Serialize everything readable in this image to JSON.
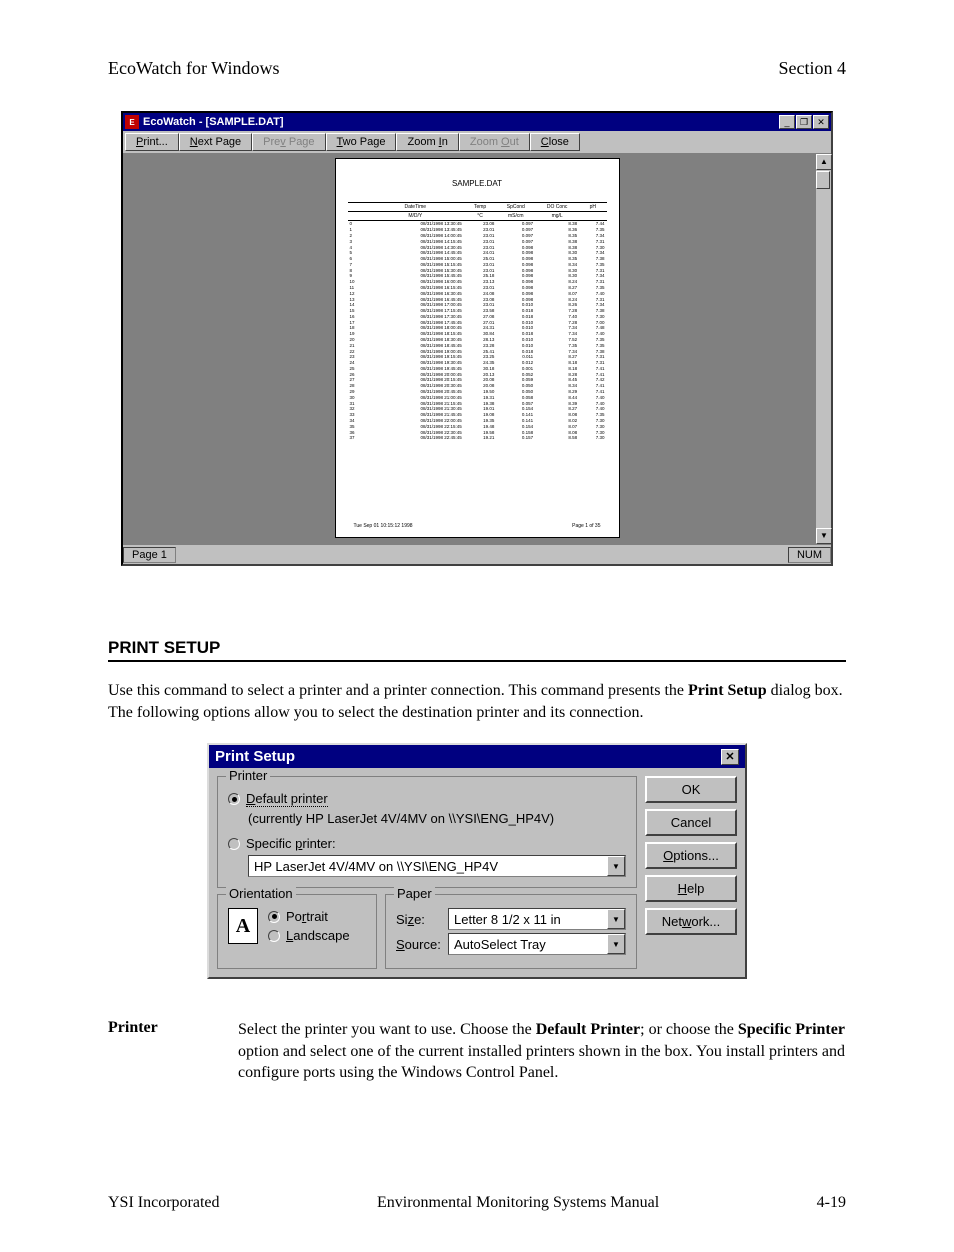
{
  "header": {
    "left": "EcoWatch for Windows",
    "right": "Section 4"
  },
  "window": {
    "title": "EcoWatch - [SAMPLE.DAT]",
    "sysbtns": {
      "min": "_",
      "max": "❐",
      "close": "✕"
    },
    "toolbar": [
      {
        "key": "print",
        "label": "Print...",
        "u": "P",
        "disabled": false
      },
      {
        "key": "next",
        "label": "Next Page",
        "u": "N",
        "disabled": false
      },
      {
        "key": "prev",
        "label": "Prev Page",
        "u": "v",
        "disabled": true
      },
      {
        "key": "twopage",
        "label": "Two Page",
        "u": "T",
        "disabled": false
      },
      {
        "key": "zoomin",
        "label": "Zoom In",
        "u": "I",
        "disabled": false
      },
      {
        "key": "zoomout",
        "label": "Zoom Out",
        "u": "O",
        "disabled": true
      },
      {
        "key": "close",
        "label": "Close",
        "u": "C",
        "disabled": false
      }
    ],
    "preview": {
      "title": "SAMPLE.DAT",
      "columns": [
        "",
        "DateTime",
        "Temp",
        "SpCond",
        "DO Conc",
        "pH"
      ],
      "units": [
        "",
        "M/D/Y",
        "°C",
        "mS/cm",
        "mg/L",
        ""
      ],
      "foot_left": "Tue Sep 01 10:15:12 1998",
      "foot_right": "Page 1 of 35",
      "rows": [
        [
          "0",
          "08/31/1998 13:30:45",
          "23.08",
          "0.097",
          "8.38",
          "7.44"
        ],
        [
          "1",
          "08/31/1998 13:45:45",
          "23.01",
          "0.097",
          "8.36",
          "7.35"
        ],
        [
          "2",
          "08/31/1998 14:00:45",
          "23.01",
          "0.097",
          "8.35",
          "7.34"
        ],
        [
          "3",
          "08/31/1998 14:15:45",
          "23.01",
          "0.097",
          "8.38",
          "7.31"
        ],
        [
          "4",
          "08/31/1998 14:30:45",
          "23.01",
          "0.098",
          "8.38",
          "7.30"
        ],
        [
          "5",
          "08/31/1998 14:45:45",
          "24.01",
          "0.098",
          "8.30",
          "7.34"
        ],
        [
          "6",
          "08/31/1998 15:00:45",
          "25.01",
          "0.098",
          "8.35",
          "7.38"
        ],
        [
          "7",
          "08/31/1998 15:15:45",
          "23.01",
          "0.098",
          "8.34",
          "7.35"
        ],
        [
          "8",
          "08/31/1998 15:30:45",
          "23.01",
          "0.098",
          "8.30",
          "7.31"
        ],
        [
          "9",
          "08/31/1998 15:45:45",
          "25.18",
          "0.098",
          "8.30",
          "7.34"
        ],
        [
          "10",
          "08/31/1998 16:00:45",
          "23.13",
          "0.098",
          "8.24",
          "7.31"
        ],
        [
          "11",
          "08/31/1998 16:15:45",
          "23.01",
          "0.098",
          "8.27",
          "7.35"
        ],
        [
          "12",
          "08/31/1998 16:30:45",
          "24.08",
          "0.098",
          "8.07",
          "7.40"
        ],
        [
          "13",
          "08/31/1998 16:45:45",
          "23.08",
          "0.098",
          "8.24",
          "7.31"
        ],
        [
          "14",
          "08/31/1998 17:00:45",
          "23.01",
          "0.010",
          "8.26",
          "7.34"
        ],
        [
          "15",
          "08/31/1998 17:15:45",
          "23.58",
          "0.018",
          "7.28",
          "7.38"
        ],
        [
          "16",
          "08/31/1998 17:30:45",
          "27.08",
          "0.018",
          "7.40",
          "7.30"
        ],
        [
          "17",
          "08/31/1998 17:45:45",
          "27.01",
          "0.010",
          "7.28",
          "7.00"
        ],
        [
          "18",
          "08/31/1998 18:00:45",
          "24.31",
          "0.010",
          "7.34",
          "7.48"
        ],
        [
          "19",
          "08/31/1998 18:15:45",
          "30.84",
          "0.018",
          "7.34",
          "7.40"
        ],
        [
          "20",
          "08/31/1998 18:30:45",
          "28.13",
          "0.010",
          "7.52",
          "7.35"
        ],
        [
          "21",
          "08/31/1998 18:45:45",
          "23.28",
          "0.010",
          "7.35",
          "7.35"
        ],
        [
          "22",
          "08/31/1998 19:00:45",
          "25.41",
          "0.018",
          "7.34",
          "7.38"
        ],
        [
          "23",
          "08/31/1998 19:15:45",
          "23.25",
          "0.011",
          "8.27",
          "7.31"
        ],
        [
          "24",
          "08/31/1998 19:30:45",
          "24.35",
          "0.012",
          "8.18",
          "7.31"
        ],
        [
          "25",
          "08/31/1998 19:45:45",
          "30.18",
          "0.001",
          "8.18",
          "7.41"
        ],
        [
          "26",
          "08/31/1998 20:00:45",
          "20.13",
          "0.052",
          "8.28",
          "7.41"
        ],
        [
          "27",
          "08/31/1998 20:15:45",
          "20.08",
          "0.059",
          "8.45",
          "7.42"
        ],
        [
          "28",
          "08/31/1998 20:30:45",
          "20.08",
          "0.050",
          "8.34",
          "7.41"
        ],
        [
          "29",
          "08/31/1998 20:45:45",
          "19.50",
          "0.050",
          "8.29",
          "7.41"
        ],
        [
          "30",
          "08/31/1998 21:00:45",
          "19.31",
          "0.058",
          "8.44",
          "7.40"
        ],
        [
          "31",
          "08/31/1998 21:15:45",
          "19.38",
          "0.057",
          "8.39",
          "7.40"
        ],
        [
          "32",
          "08/31/1998 21:30:45",
          "19.01",
          "0.154",
          "8.27",
          "7.40"
        ],
        [
          "33",
          "08/31/1998 21:45:45",
          "19.08",
          "0.141",
          "8.08",
          "7.35"
        ],
        [
          "34",
          "08/31/1998 22:00:45",
          "19.35",
          "0.141",
          "8.02",
          "7.30"
        ],
        [
          "35",
          "08/31/1998 22:15:45",
          "19.48",
          "0.154",
          "8.07",
          "7.30"
        ],
        [
          "36",
          "08/31/1998 22:30:45",
          "19.58",
          "0.158",
          "8.08",
          "7.30"
        ],
        [
          "37",
          "08/31/1998 22:45:45",
          "19.21",
          "0.157",
          "8.58",
          "7.30"
        ]
      ]
    },
    "status": {
      "left": "Page 1",
      "right": "NUM"
    }
  },
  "section": {
    "heading": "PRINT SETUP",
    "para_a": "Use this command to select a printer and a printer connection.  This command presents the ",
    "para_b": "Print Setup",
    "para_c": " dialog box.  The following options allow you to select the destination printer and its connection."
  },
  "dialog": {
    "title": "Print Setup",
    "buttons": {
      "ok": "OK",
      "cancel": "Cancel",
      "options": "Options...",
      "help": "Help",
      "network": "Network..."
    },
    "printer": {
      "legend": "Printer",
      "default_label": "Default printer",
      "current": "(currently HP LaserJet 4V/4MV on \\\\YSI\\ENG_HP4V)",
      "specific_label": "Specific printer:",
      "selected": "HP LaserJet 4V/4MV on \\\\YSI\\ENG_HP4V"
    },
    "orientation": {
      "legend": "Orientation",
      "portrait": "Portrait",
      "landscape": "Landscape",
      "icon": "A"
    },
    "paper": {
      "legend": "Paper",
      "size_lbl": "Size:",
      "size_val": "Letter 8 1/2 x 11 in",
      "source_lbl": "Source:",
      "source_val": "AutoSelect Tray"
    }
  },
  "definition": {
    "term": "Printer",
    "body_a": "Select the printer you want to use.  Choose the ",
    "body_b": "Default Printer",
    "body_c": "; or choose the ",
    "body_d": "Specific Printer",
    "body_e": " option and select one of the current installed printers shown in the box.  You install printers and configure ports using the Windows Control Panel."
  },
  "footer": {
    "left": "YSI Incorporated",
    "center": "Environmental Monitoring Systems Manual",
    "right": "4-19"
  }
}
